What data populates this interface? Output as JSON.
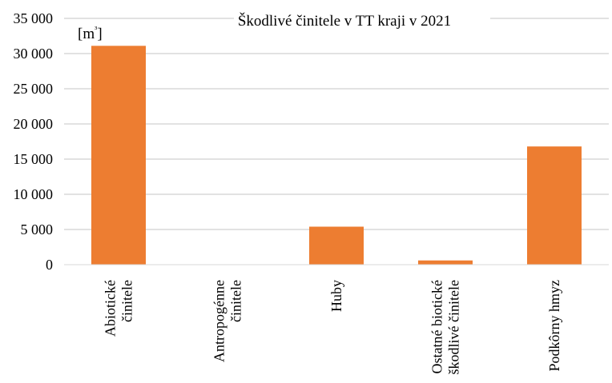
{
  "chart_data": {
    "type": "bar",
    "title": "Škodlivé činitele v TT kraji v 2021",
    "unit_label": "[m³]",
    "xlabel": "",
    "ylabel": "",
    "ylim": [
      0,
      35000
    ],
    "y_ticks": [
      0,
      5000,
      10000,
      15000,
      20000,
      25000,
      30000,
      35000
    ],
    "y_tick_labels": [
      "0",
      "5 000",
      "10 000",
      "15 000",
      "20 000",
      "25 000",
      "30 000",
      "35 000"
    ],
    "grid": true,
    "legend": "none",
    "bar_color": "#ED7D31",
    "grid_color": "#D9D9D9",
    "categories": [
      [
        "Abiotické",
        "činitele"
      ],
      [
        "Antropogénne",
        "činitele"
      ],
      [
        "Huby"
      ],
      [
        "Ostatné biotické",
        "škodlivé činitele"
      ],
      [
        "Podkôrny hmyz"
      ]
    ],
    "values": [
      31100,
      0,
      5400,
      600,
      16800
    ]
  }
}
